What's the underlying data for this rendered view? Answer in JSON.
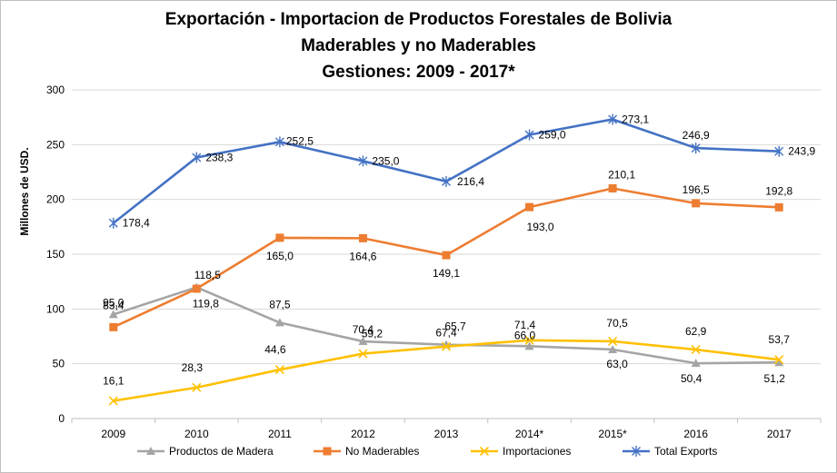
{
  "chart_data": {
    "type": "line",
    "title_lines": [
      "Exportación - Importacion de Productos Forestales de Bolivia",
      "Maderables y no Maderables",
      "Gestiones: 2009 - 2017*"
    ],
    "xlabel": "",
    "ylabel": "Millones de USD.",
    "categories": [
      "2009",
      "2010",
      "2011",
      "2012",
      "2013",
      "2014*",
      "2015*",
      "2016",
      "2017"
    ],
    "ylim": [
      0,
      300
    ],
    "yticks": [
      "0",
      "50",
      "100",
      "150",
      "200",
      "250",
      "300"
    ],
    "grid": true,
    "legend_position": "bottom",
    "series": [
      {
        "name": "Productos de Madera",
        "color": "#a5a5a5",
        "marker": "triangle",
        "values": [
          95.0,
          119.8,
          87.5,
          70.4,
          67.4,
          66.0,
          63.0,
          50.4,
          51.2
        ],
        "labels": [
          "95,0",
          "119,8",
          "87,5",
          "70,4",
          "67,4",
          "66,0",
          "63,0",
          "50,4",
          "51,2"
        ]
      },
      {
        "name": "No Maderables",
        "color": "#ed7d31",
        "marker": "square",
        "values": [
          83.4,
          118.5,
          165.0,
          164.6,
          149.1,
          193.0,
          210.1,
          196.5,
          192.8
        ],
        "labels": [
          "83,4",
          "118,5",
          "165,0",
          "164,6",
          "149,1",
          "193,0",
          "210,1",
          "196,5",
          "192,8"
        ]
      },
      {
        "name": "Importaciones",
        "color": "#ffc000",
        "marker": "x",
        "values": [
          16.1,
          28.3,
          44.6,
          59.2,
          65.7,
          71.4,
          70.5,
          62.9,
          53.7
        ],
        "labels": [
          "16,1",
          "28,3",
          "44,6",
          "59,2",
          "65,7",
          "71,4",
          "70,5",
          "62,9",
          "53,7"
        ]
      },
      {
        "name": "Total Exports",
        "color": "#4472c4",
        "marker": "star",
        "values": [
          178.4,
          238.3,
          252.5,
          235.0,
          216.4,
          259.0,
          273.1,
          246.9,
          243.9
        ],
        "labels": [
          "178,4",
          "238,3",
          "252,5",
          "235,0",
          "216,4",
          "259,0",
          "273,1",
          "246,9",
          "243,9"
        ]
      }
    ]
  }
}
